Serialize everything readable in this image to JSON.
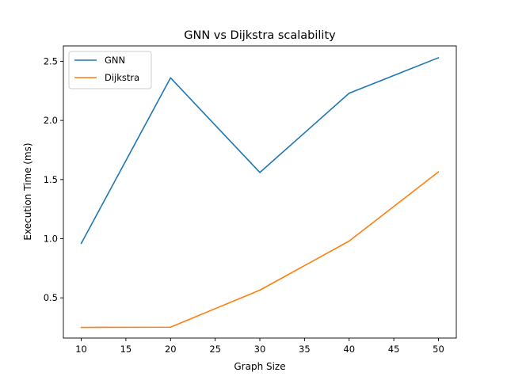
{
  "chart_data": {
    "type": "line",
    "title": "GNN vs Dijkstra scalability",
    "xlabel": "Graph Size",
    "ylabel": "Execution Time (ms)",
    "x": [
      10,
      20,
      30,
      40,
      50
    ],
    "series": [
      {
        "name": "GNN",
        "color": "#1f77b4",
        "values": [
          0.96,
          2.36,
          1.56,
          2.23,
          2.53
        ]
      },
      {
        "name": "Dijkstra",
        "color": "#ff7f0e",
        "values": [
          0.25,
          0.252,
          0.565,
          0.98,
          1.565
        ]
      }
    ],
    "xlim": [
      8,
      52
    ],
    "ylim": [
      0.16,
      2.63
    ],
    "xticks": [
      "10",
      "15",
      "20",
      "25",
      "30",
      "35",
      "40",
      "45",
      "50"
    ],
    "yticks": [
      "0.5",
      "1.0",
      "1.5",
      "2.0",
      "2.5"
    ],
    "grid": false,
    "legend_position": "top-left"
  }
}
